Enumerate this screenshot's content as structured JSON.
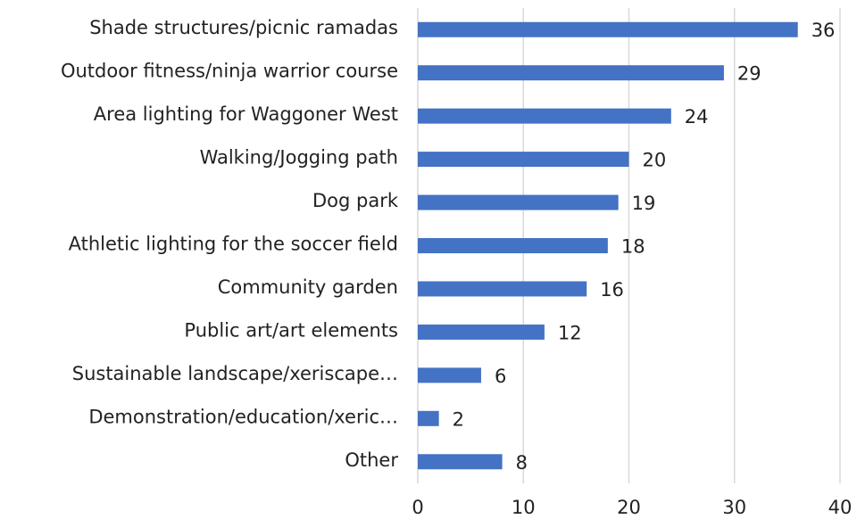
{
  "chart_data": {
    "type": "bar",
    "orientation": "horizontal",
    "categories": [
      "Shade structures/picnic ramadas",
      "Outdoor fitness/ninja warrior course",
      "Area lighting for Waggoner West",
      "Walking/Jogging path",
      "Dog park",
      "Athletic lighting for the soccer field",
      "Community garden",
      "Public art/art elements",
      "Sustainable landscape/xeriscape…",
      "Demonstration/education/xeric…",
      "Other"
    ],
    "values": [
      36,
      29,
      24,
      20,
      19,
      18,
      16,
      12,
      6,
      2,
      8
    ],
    "color": "#4472c4",
    "xlim": [
      0,
      40
    ],
    "xticks": [
      0,
      10,
      20,
      30,
      40
    ],
    "grid": true
  }
}
